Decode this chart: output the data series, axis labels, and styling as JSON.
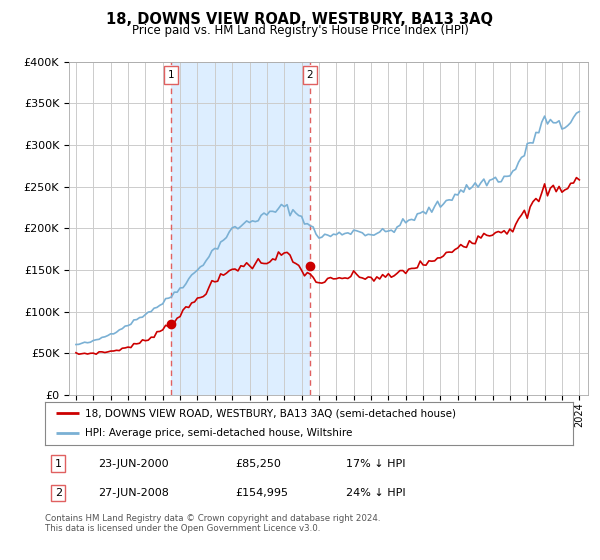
{
  "title": "18, DOWNS VIEW ROAD, WESTBURY, BA13 3AQ",
  "subtitle": "Price paid vs. HM Land Registry's House Price Index (HPI)",
  "legend_line1": "18, DOWNS VIEW ROAD, WESTBURY, BA13 3AQ (semi-detached house)",
  "legend_line2": "HPI: Average price, semi-detached house, Wiltshire",
  "footnote": "Contains HM Land Registry data © Crown copyright and database right 2024.\nThis data is licensed under the Open Government Licence v3.0.",
  "sale1_date": "23-JUN-2000",
  "sale1_price": "£85,250",
  "sale1_hpi": "17% ↓ HPI",
  "sale2_date": "27-JUN-2008",
  "sale2_price": "£154,995",
  "sale2_hpi": "24% ↓ HPI",
  "sale1_year": 2000.47,
  "sale1_value": 85250,
  "sale2_year": 2008.48,
  "sale2_value": 154995,
  "red_color": "#cc0000",
  "blue_color": "#7ab0d4",
  "shade_color": "#ddeeff",
  "dashed_color": "#e06060",
  "background_color": "#ffffff",
  "grid_color": "#cccccc",
  "ylim": [
    0,
    400000
  ],
  "xlim": [
    1994.6,
    2024.5
  ]
}
